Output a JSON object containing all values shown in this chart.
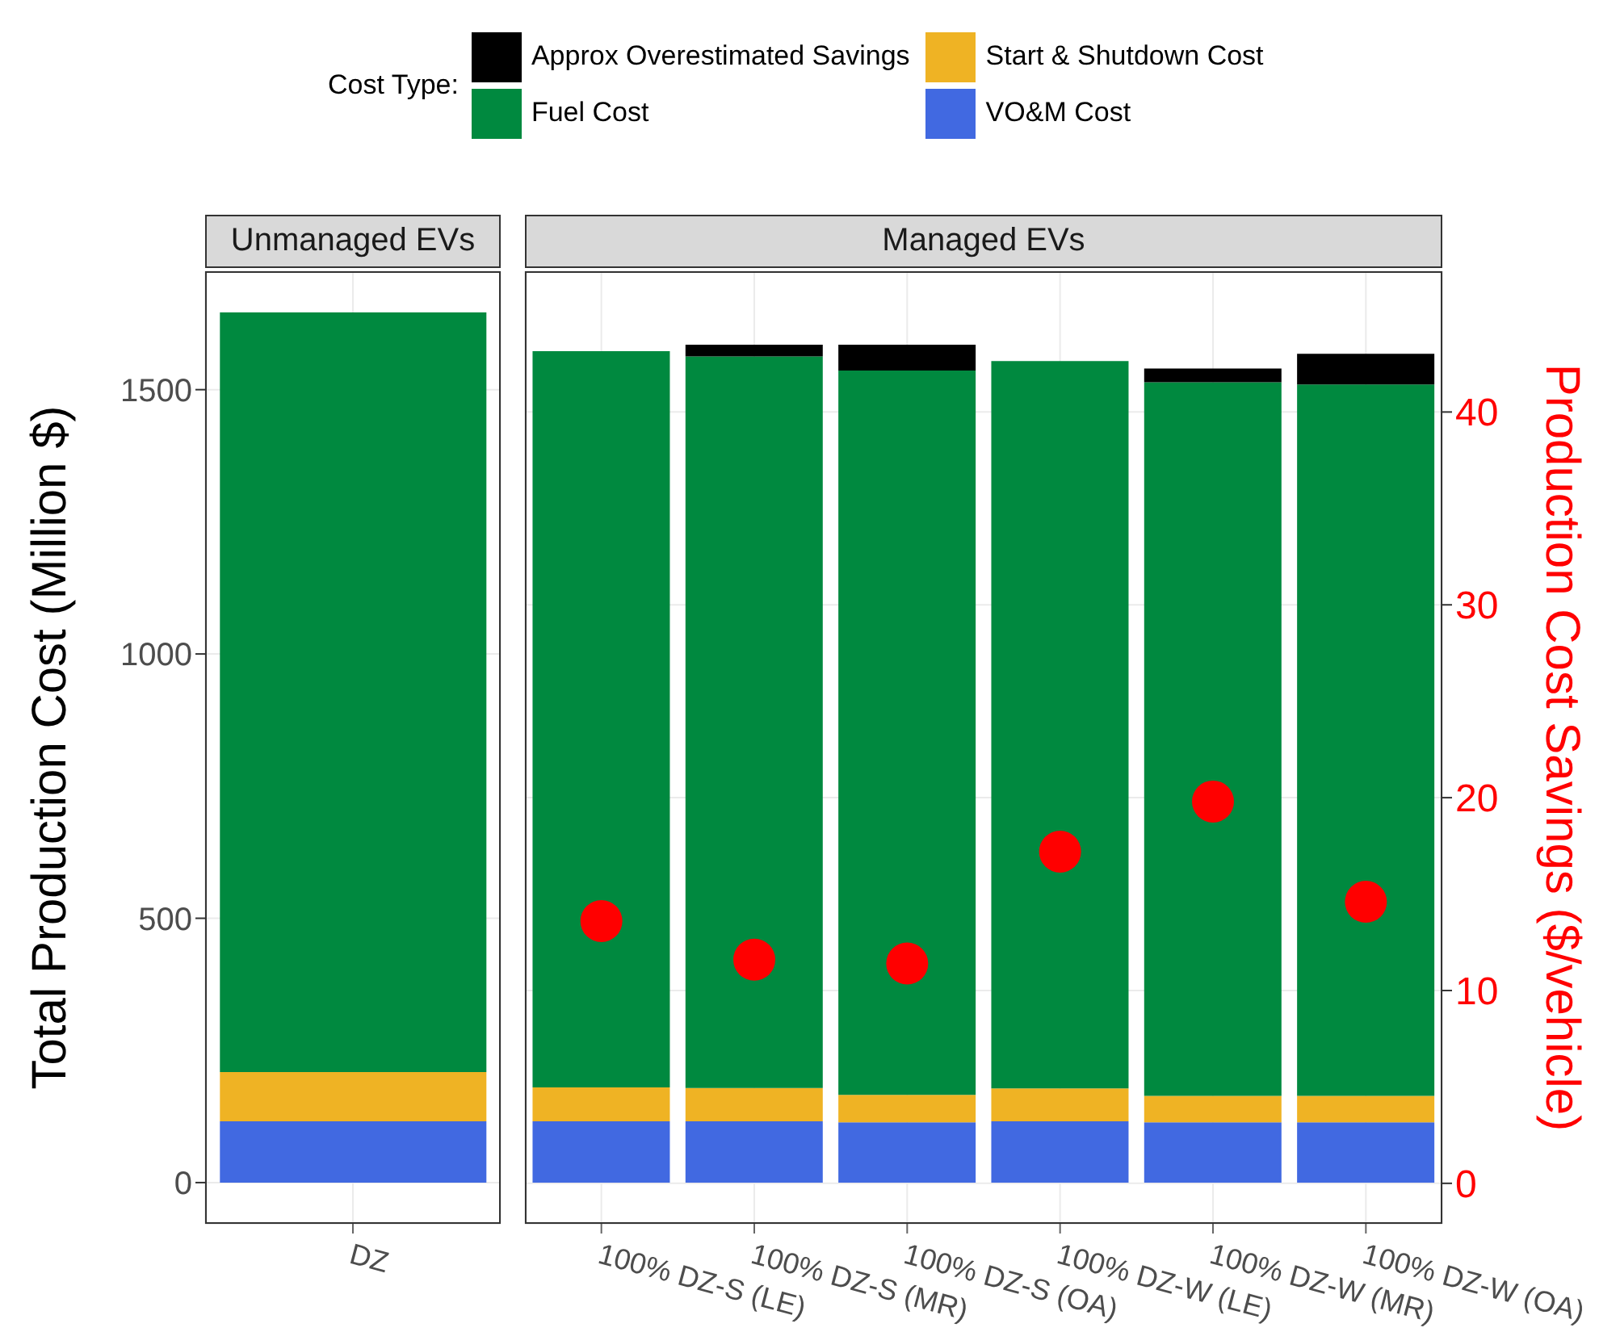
{
  "chart_data": [
    {
      "type": "bar",
      "stacked": true,
      "title": "Unmanaged EVs",
      "categories": [
        "DZ"
      ],
      "ylabel": "Total Production Cost (Million $)",
      "ylim": [
        -78,
        1724
      ],
      "yticks": [
        0,
        500,
        1000,
        1500
      ],
      "grid": true,
      "legend": "top",
      "legend_title": "Cost Type:",
      "series": [
        {
          "name": "VO&M Cost",
          "color": "#4169e1",
          "values": [
            116
          ]
        },
        {
          "name": "Start & Shutdown Cost",
          "color": "#efb324",
          "values": [
            93
          ]
        },
        {
          "name": "Fuel Cost",
          "color": "#00893f",
          "values": [
            1437
          ]
        },
        {
          "name": "Approx Overestimated Savings",
          "color": "#000000",
          "values": [
            0
          ]
        }
      ]
    },
    {
      "type": "bar",
      "stacked": true,
      "title": "Managed EVs",
      "categories": [
        "100% DZ-S (LE)",
        "100% DZ-S (MR)",
        "100% DZ-S (OA)",
        "100% DZ-W (LE)",
        "100% DZ-W (MR)",
        "100% DZ-W (OA)"
      ],
      "ylim": [
        -78,
        1724
      ],
      "y2lim": [
        -2.1,
        47.3
      ],
      "y2ticks": [
        0,
        10,
        20,
        30,
        40
      ],
      "y2label": "Production Cost Savings ($/vehicle)",
      "grid": true,
      "marker": "circle",
      "series": [
        {
          "color": "#4169e1",
          "values": [
            116,
            116,
            114,
            116,
            114,
            114
          ]
        },
        {
          "color": "#efb324",
          "values": [
            64,
            63,
            52,
            62,
            50,
            50
          ]
        },
        {
          "color": "#00893f",
          "values": [
            1393,
            1384,
            1370,
            1376,
            1350,
            1346
          ]
        },
        {
          "color": "#000000",
          "values": [
            0,
            22,
            49,
            0,
            26,
            58
          ]
        },
        {
          "type": "scatter",
          "axis": "y2",
          "color": "#ff0000",
          "values": [
            13.6,
            11.6,
            11.4,
            17.2,
            19.8,
            14.6
          ]
        }
      ]
    }
  ]
}
